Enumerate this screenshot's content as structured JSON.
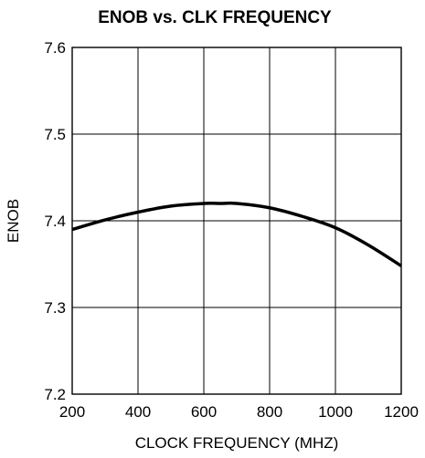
{
  "chart_data": {
    "type": "line",
    "title": "ENOB vs. CLK FREQUENCY",
    "xlabel": "CLOCK FREQUENCY (MHZ)",
    "ylabel": "ENOB",
    "xlim": [
      200,
      1200
    ],
    "ylim": [
      7.2,
      7.6
    ],
    "x_ticks": [
      "200",
      "400",
      "600",
      "800",
      "1000",
      "1200"
    ],
    "y_ticks": [
      "7.2",
      "7.3",
      "7.4",
      "7.5",
      "7.6"
    ],
    "grid": true,
    "legend": "none",
    "line_color": "#000000",
    "series": [
      {
        "x": [
          200,
          300,
          400,
          500,
          600,
          650,
          700,
          800,
          900,
          1000,
          1100,
          1200
        ],
        "y": [
          7.39,
          7.401,
          7.41,
          7.417,
          7.42,
          7.42,
          7.42,
          7.415,
          7.405,
          7.392,
          7.372,
          7.348
        ]
      }
    ]
  }
}
